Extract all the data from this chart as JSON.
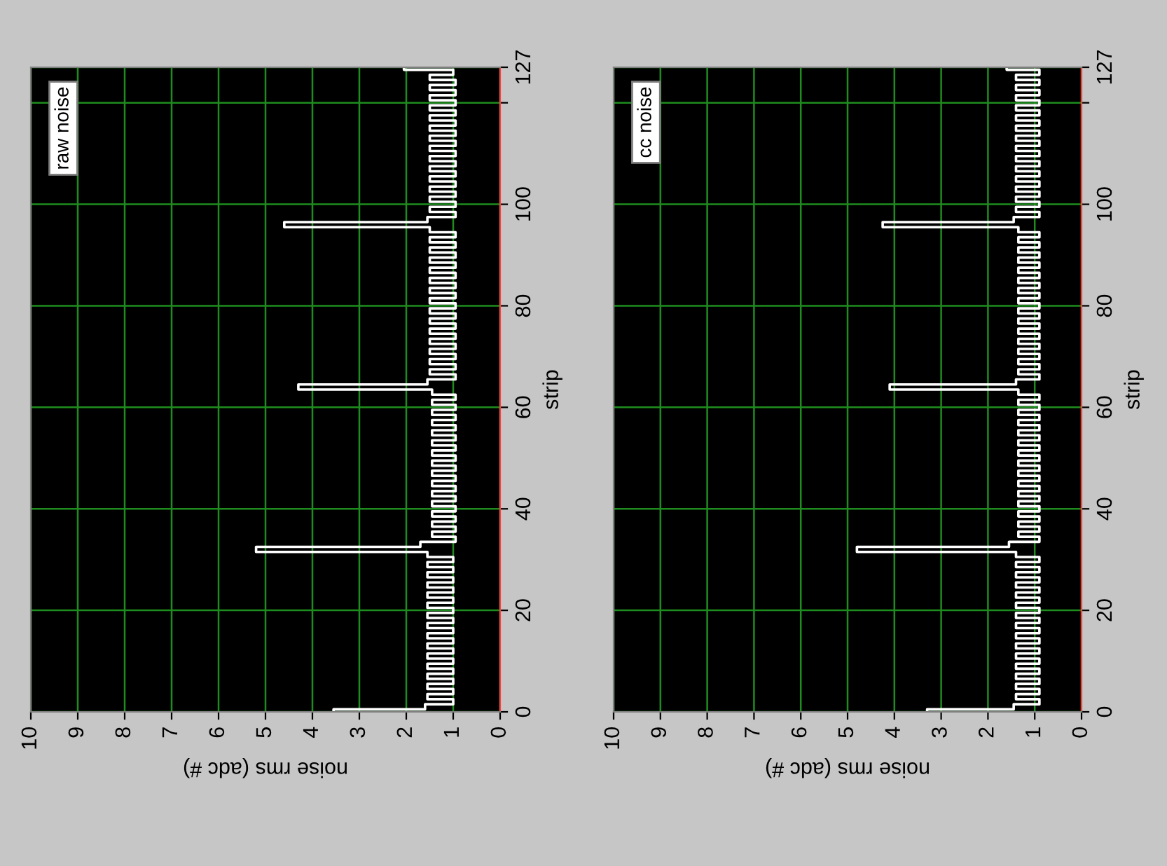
{
  "chart_data": [
    {
      "type": "step",
      "orientation": "horizontal",
      "xlabel": "noise rms (adc #)",
      "ylabel": "strip",
      "xlim": [
        10,
        0
      ],
      "xticks": [
        10,
        9,
        8,
        7,
        6,
        5,
        4,
        3,
        2,
        1,
        0
      ],
      "ylim": [
        0,
        127
      ],
      "yticks": [
        0,
        20,
        40,
        60,
        80,
        100,
        {
          "value": 120,
          "label": null
        },
        127
      ],
      "grid": true,
      "legend": "top left",
      "series": [
        {
          "name": "raw noise",
          "color": "#ffffff",
          "x": [
            0,
            1,
            2,
            3,
            4,
            5,
            6,
            7,
            8,
            9,
            10,
            11,
            12,
            13,
            14,
            15,
            16,
            17,
            18,
            19,
            20,
            21,
            22,
            23,
            24,
            25,
            26,
            27,
            28,
            29,
            30,
            31,
            32,
            33,
            34,
            35,
            36,
            37,
            38,
            39,
            40,
            41,
            42,
            43,
            44,
            45,
            46,
            47,
            48,
            49,
            50,
            51,
            52,
            53,
            54,
            55,
            56,
            57,
            58,
            59,
            60,
            61,
            62,
            63,
            64,
            65,
            66,
            67,
            68,
            69,
            70,
            71,
            72,
            73,
            74,
            75,
            76,
            77,
            78,
            79,
            80,
            81,
            82,
            83,
            84,
            85,
            86,
            87,
            88,
            89,
            90,
            91,
            92,
            93,
            94,
            95,
            96,
            97,
            98,
            99,
            100,
            101,
            102,
            103,
            104,
            105,
            106,
            107,
            108,
            109,
            110,
            111,
            112,
            113,
            114,
            115,
            116,
            117,
            118,
            119,
            120,
            121,
            122,
            123,
            124,
            125,
            126,
            127
          ],
          "values": [
            3.55,
            1.6,
            1.0,
            1.55,
            1.0,
            1.55,
            1.0,
            1.55,
            1.0,
            1.55,
            1.0,
            1.55,
            1.0,
            1.55,
            1.0,
            1.55,
            1.0,
            1.55,
            1.0,
            1.55,
            1.0,
            1.55,
            1.0,
            1.55,
            1.0,
            1.55,
            1.0,
            1.55,
            1.0,
            1.55,
            1.0,
            1.55,
            5.2,
            1.7,
            0.95,
            1.45,
            0.95,
            1.45,
            0.95,
            1.45,
            0.95,
            1.45,
            0.95,
            1.45,
            0.95,
            1.45,
            0.95,
            1.45,
            0.95,
            1.45,
            0.95,
            1.45,
            0.95,
            1.45,
            0.95,
            1.45,
            0.95,
            1.45,
            0.95,
            1.45,
            0.95,
            1.45,
            0.95,
            1.45,
            4.3,
            1.55,
            0.95,
            1.5,
            0.95,
            1.5,
            0.95,
            1.5,
            0.95,
            1.5,
            0.95,
            1.5,
            0.95,
            1.5,
            0.95,
            1.5,
            0.95,
            1.5,
            0.95,
            1.5,
            0.95,
            1.5,
            0.95,
            1.5,
            0.95,
            1.5,
            0.95,
            1.5,
            0.95,
            1.5,
            0.95,
            1.5,
            4.6,
            1.55,
            0.95,
            1.5,
            0.95,
            1.5,
            0.95,
            1.5,
            0.95,
            1.5,
            0.95,
            1.5,
            0.95,
            1.5,
            0.95,
            1.5,
            0.95,
            1.5,
            0.95,
            1.5,
            0.95,
            1.5,
            0.95,
            1.5,
            0.95,
            1.5,
            0.95,
            1.5,
            0.95,
            1.5,
            1.0,
            2.05
          ]
        }
      ]
    },
    {
      "type": "step",
      "orientation": "horizontal",
      "xlabel": "noise rms (adc #)",
      "ylabel": "strip",
      "xlim": [
        10,
        0
      ],
      "xticks": [
        10,
        9,
        8,
        7,
        6,
        5,
        4,
        3,
        2,
        1,
        0
      ],
      "ylim": [
        0,
        127
      ],
      "yticks": [
        0,
        20,
        40,
        60,
        80,
        100,
        {
          "value": 120,
          "label": null
        },
        127
      ],
      "grid": true,
      "legend": "top left",
      "series": [
        {
          "name": "cc noise",
          "color": "#ffffff",
          "x": [
            0,
            1,
            2,
            3,
            4,
            5,
            6,
            7,
            8,
            9,
            10,
            11,
            12,
            13,
            14,
            15,
            16,
            17,
            18,
            19,
            20,
            21,
            22,
            23,
            24,
            25,
            26,
            27,
            28,
            29,
            30,
            31,
            32,
            33,
            34,
            35,
            36,
            37,
            38,
            39,
            40,
            41,
            42,
            43,
            44,
            45,
            46,
            47,
            48,
            49,
            50,
            51,
            52,
            53,
            54,
            55,
            56,
            57,
            58,
            59,
            60,
            61,
            62,
            63,
            64,
            65,
            66,
            67,
            68,
            69,
            70,
            71,
            72,
            73,
            74,
            75,
            76,
            77,
            78,
            79,
            80,
            81,
            82,
            83,
            84,
            85,
            86,
            87,
            88,
            89,
            90,
            91,
            92,
            93,
            94,
            95,
            96,
            97,
            98,
            99,
            100,
            101,
            102,
            103,
            104,
            105,
            106,
            107,
            108,
            109,
            110,
            111,
            112,
            113,
            114,
            115,
            116,
            117,
            118,
            119,
            120,
            121,
            122,
            123,
            124,
            125,
            126,
            127
          ],
          "values": [
            3.3,
            1.45,
            0.9,
            1.4,
            0.9,
            1.4,
            0.9,
            1.4,
            0.9,
            1.4,
            0.9,
            1.4,
            0.9,
            1.4,
            0.9,
            1.4,
            0.9,
            1.4,
            0.9,
            1.4,
            0.9,
            1.4,
            0.9,
            1.4,
            0.9,
            1.4,
            0.9,
            1.4,
            0.9,
            1.4,
            0.9,
            1.4,
            4.8,
            1.55,
            0.9,
            1.35,
            0.9,
            1.35,
            0.9,
            1.35,
            0.9,
            1.35,
            0.9,
            1.35,
            0.9,
            1.35,
            0.9,
            1.35,
            0.9,
            1.35,
            0.9,
            1.35,
            0.9,
            1.35,
            0.9,
            1.35,
            0.9,
            1.35,
            0.9,
            1.35,
            0.9,
            1.35,
            0.9,
            1.35,
            4.1,
            1.4,
            0.9,
            1.35,
            0.9,
            1.35,
            0.9,
            1.35,
            0.9,
            1.35,
            0.9,
            1.35,
            0.9,
            1.35,
            0.9,
            1.35,
            0.9,
            1.35,
            0.9,
            1.35,
            0.9,
            1.35,
            0.9,
            1.35,
            0.9,
            1.35,
            0.9,
            1.35,
            0.9,
            1.35,
            0.9,
            1.35,
            4.25,
            1.45,
            0.9,
            1.4,
            0.9,
            1.4,
            0.9,
            1.4,
            0.9,
            1.4,
            0.9,
            1.4,
            0.9,
            1.4,
            0.9,
            1.4,
            0.9,
            1.4,
            0.9,
            1.4,
            0.9,
            1.4,
            0.9,
            1.4,
            0.9,
            1.4,
            0.9,
            1.4,
            0.9,
            1.4,
            0.9,
            1.6
          ]
        }
      ]
    }
  ]
}
